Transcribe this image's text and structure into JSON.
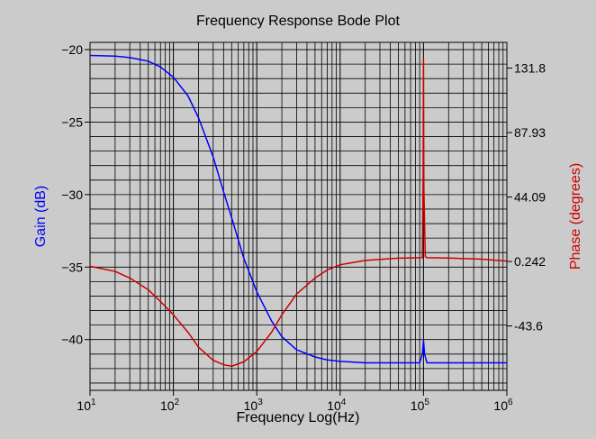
{
  "chart_data": {
    "type": "line",
    "title": "Frequency Response Bode Plot",
    "xlabel": "Frequency Log(Hz)",
    "ylabel_left": "Gain (dB)",
    "ylabel_right": "Phase (degrees)",
    "x_scale": "log",
    "xlim": [
      10,
      1000000
    ],
    "x_ticks": [
      {
        "value": 10,
        "base": "10",
        "exp": "1"
      },
      {
        "value": 100,
        "base": "10",
        "exp": "2"
      },
      {
        "value": 1000,
        "base": "10",
        "exp": "3"
      },
      {
        "value": 10000,
        "base": "10",
        "exp": "4"
      },
      {
        "value": 100000,
        "base": "10",
        "exp": "5"
      },
      {
        "value": 1000000,
        "base": "10",
        "exp": "6"
      }
    ],
    "ylim_left": [
      -43.5,
      -19.5
    ],
    "left_ticks": [
      -20,
      -25,
      -30,
      -35,
      -40
    ],
    "ylim_right": [
      -87.4,
      149.3
    ],
    "right_ticks": [
      "131.8",
      "87.93",
      "44.09",
      "0.242",
      "-43.6"
    ],
    "right_tick_values": [
      131.8,
      87.93,
      44.09,
      0.242,
      -43.6
    ],
    "grid": true,
    "legend": "none",
    "series": [
      {
        "name": "Gain (dB)",
        "axis": "left",
        "color": "#0000ff",
        "x": [
          10,
          20,
          30,
          50,
          70,
          100,
          150,
          200,
          300,
          400,
          500,
          700,
          1000,
          1500,
          2000,
          3000,
          5000,
          7000,
          10000,
          20000,
          50000,
          90000,
          97000,
          100000,
          103000,
          110000,
          200000,
          500000,
          1000000
        ],
        "y": [
          -20.4,
          -20.45,
          -20.55,
          -20.8,
          -21.2,
          -21.9,
          -23.2,
          -24.7,
          -27.4,
          -29.8,
          -31.6,
          -34.4,
          -36.7,
          -38.7,
          -39.8,
          -40.7,
          -41.2,
          -41.4,
          -41.5,
          -41.6,
          -41.6,
          -41.6,
          -41.0,
          -40.05,
          -41.0,
          -41.6,
          -41.6,
          -41.6,
          -41.6
        ]
      },
      {
        "name": "Phase (degrees)",
        "axis": "right",
        "color": "#cc0000",
        "x": [
          10,
          20,
          30,
          50,
          70,
          100,
          150,
          200,
          300,
          400,
          500,
          700,
          1000,
          1500,
          2000,
          3000,
          5000,
          7000,
          10000,
          20000,
          50000,
          97000,
          99000,
          100000,
          101000,
          105000,
          110000,
          200000,
          500000,
          1000000
        ],
        "y": [
          -3,
          -6.5,
          -11,
          -19,
          -27,
          -36,
          -48,
          -58,
          -67,
          -70,
          -71,
          -68,
          -61,
          -48,
          -36,
          -22,
          -11,
          -5.5,
          -2,
          1,
          2.5,
          2.8,
          60,
          138,
          50,
          3.5,
          2.8,
          2.6,
          1.8,
          0.5
        ]
      }
    ]
  }
}
